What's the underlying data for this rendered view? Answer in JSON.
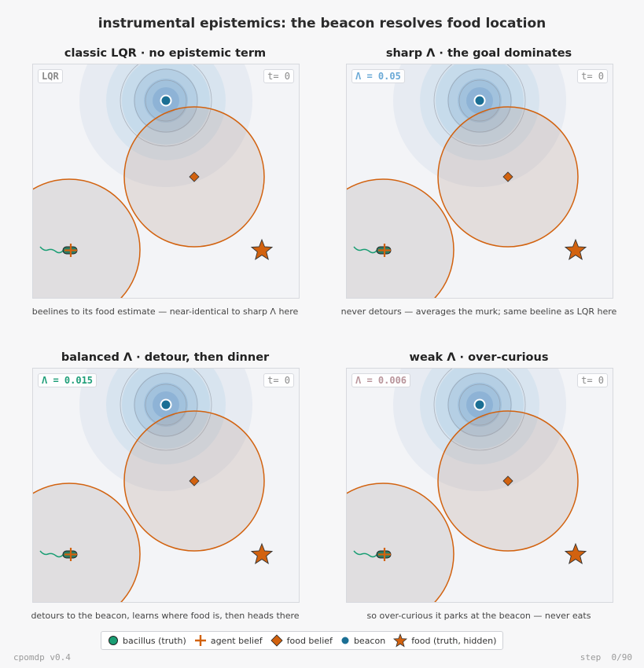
{
  "title": "instrumental epistemics: the beacon resolves food location",
  "panels": [
    {
      "title": "classic LQR · no epistemic term",
      "tag": "LQR",
      "tag_color": "#8a8a8a",
      "time": "t= 0",
      "caption": "beelines to its food estimate — near-identical to sharp Λ here"
    },
    {
      "title": "sharp Λ · the goal dominates",
      "tag": "Λ = 0.05",
      "tag_color": "#6aa9d6",
      "time": "t= 0",
      "caption": "never detours — averages the murk; same beeline as LQR here"
    },
    {
      "title": "balanced Λ · detour, then dinner",
      "tag": "Λ = 0.015",
      "tag_color": "#1e9e78",
      "time": "t= 0",
      "caption": "detours to the beacon, learns where food is, then heads there"
    },
    {
      "title": "weak Λ · over-curious",
      "tag": "Λ = 0.006",
      "tag_color": "#b9959b",
      "time": "t= 0",
      "caption": "so over-curious it parks at the beacon — never eats"
    }
  ],
  "legend": {
    "bacillus": "bacillus (truth)",
    "agent_belief": "agent belief",
    "food_belief": "food belief",
    "beacon": "beacon",
    "food_truth": "food (truth, hidden)"
  },
  "footer": {
    "version": "cpomdp v0.4",
    "step": "step  0/90"
  },
  "colors": {
    "orange": "#d2620f",
    "teal": "#1a9e74",
    "beacon": "#1b6f94",
    "background": "#f7f7f8"
  }
}
